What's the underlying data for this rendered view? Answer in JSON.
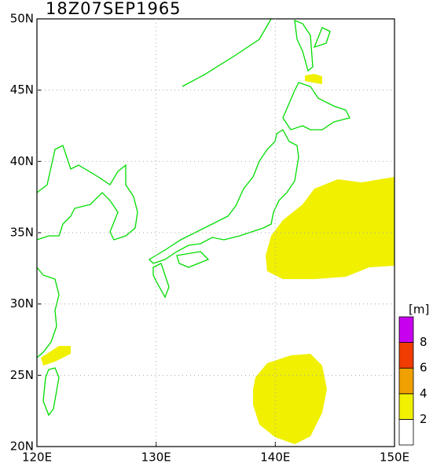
{
  "chart_data": {
    "type": "map",
    "title": "18Z07SEP1965",
    "xlim": [
      120,
      150
    ],
    "ylim": [
      20,
      50
    ],
    "xticks": [
      {
        "value": 120,
        "label": "120E"
      },
      {
        "value": 130,
        "label": "130E"
      },
      {
        "value": 140,
        "label": "140E"
      },
      {
        "value": 150,
        "label": "150E"
      }
    ],
    "yticks": [
      {
        "value": 20,
        "label": "20N"
      },
      {
        "value": 25,
        "label": "25N"
      },
      {
        "value": 30,
        "label": "30N"
      },
      {
        "value": 35,
        "label": "35N"
      },
      {
        "value": 40,
        "label": "40N"
      },
      {
        "value": 45,
        "label": "45N"
      },
      {
        "value": 50,
        "label": "50N"
      }
    ],
    "grid": true,
    "coast_color": "#00dd00",
    "colorbar": {
      "unit": "[m]",
      "clim": [
        0,
        10
      ],
      "bounds": [
        0,
        2,
        4,
        6,
        8,
        10
      ],
      "colors": [
        "#ffffff",
        "#f0f000",
        "#f0a000",
        "#f03c00",
        "#c800f0"
      ],
      "ticks": [
        2,
        4,
        6,
        8
      ]
    }
  }
}
